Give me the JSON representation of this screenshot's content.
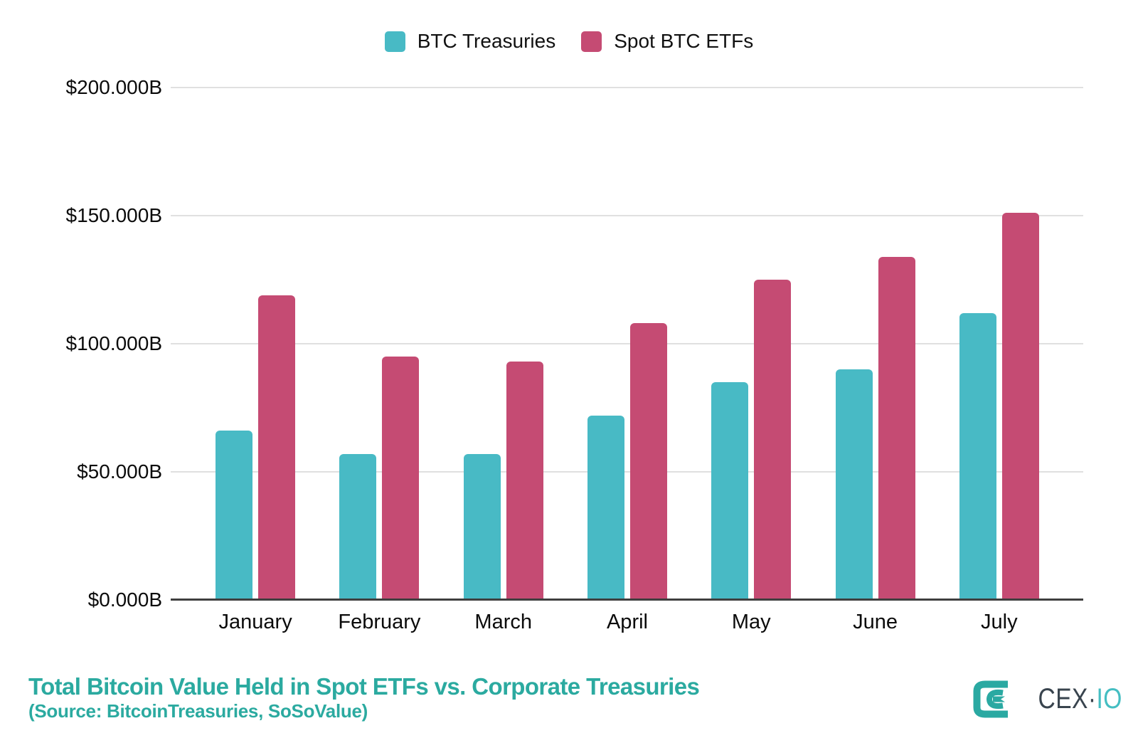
{
  "legend": {
    "items": [
      {
        "label": "BTC Treasuries",
        "color": "#48bac5"
      },
      {
        "label": "Spot BTC ETFs",
        "color": "#c54b73"
      }
    ]
  },
  "chart_data": {
    "type": "bar",
    "categories": [
      "January",
      "February",
      "March",
      "April",
      "May",
      "June",
      "July"
    ],
    "series": [
      {
        "name": "BTC Treasuries",
        "color": "#48bac5",
        "values": [
          66,
          57,
          57,
          72,
          85,
          90,
          112
        ]
      },
      {
        "name": "Spot BTC ETFs",
        "color": "#c54b73",
        "values": [
          119,
          95,
          93,
          108,
          125,
          134,
          151
        ]
      }
    ],
    "ylim": [
      0,
      200
    ],
    "y_ticks": [
      {
        "value": 0,
        "label": "$0.000B"
      },
      {
        "value": 50,
        "label": "$50.000B"
      },
      {
        "value": 100,
        "label": "$100.000B"
      },
      {
        "value": 150,
        "label": "$150.000B"
      },
      {
        "value": 200,
        "label": "$200.000B"
      }
    ],
    "title": "Total Bitcoin Value Held in Spot ETFs vs. Corporate Treasuries",
    "xlabel": "",
    "ylabel": "",
    "grid": "horizontal",
    "legend_position": "top"
  },
  "footer": {
    "title": "Total Bitcoin Value Held in Spot ETFs vs. Corporate Treasuries",
    "subtitle": "(Source: BitcoinTreasuries, SoSoValue)"
  },
  "logo": {
    "text_primary": "CEX",
    "separator": "·",
    "text_secondary": "IO",
    "mark_color": "#2aa9a2"
  },
  "colors": {
    "teal_bar": "#48bac5",
    "pink_bar": "#c54b73",
    "title_teal": "#2baaa0",
    "gridline": "#e0e0e0",
    "axis_line": "#3f3f3f"
  }
}
